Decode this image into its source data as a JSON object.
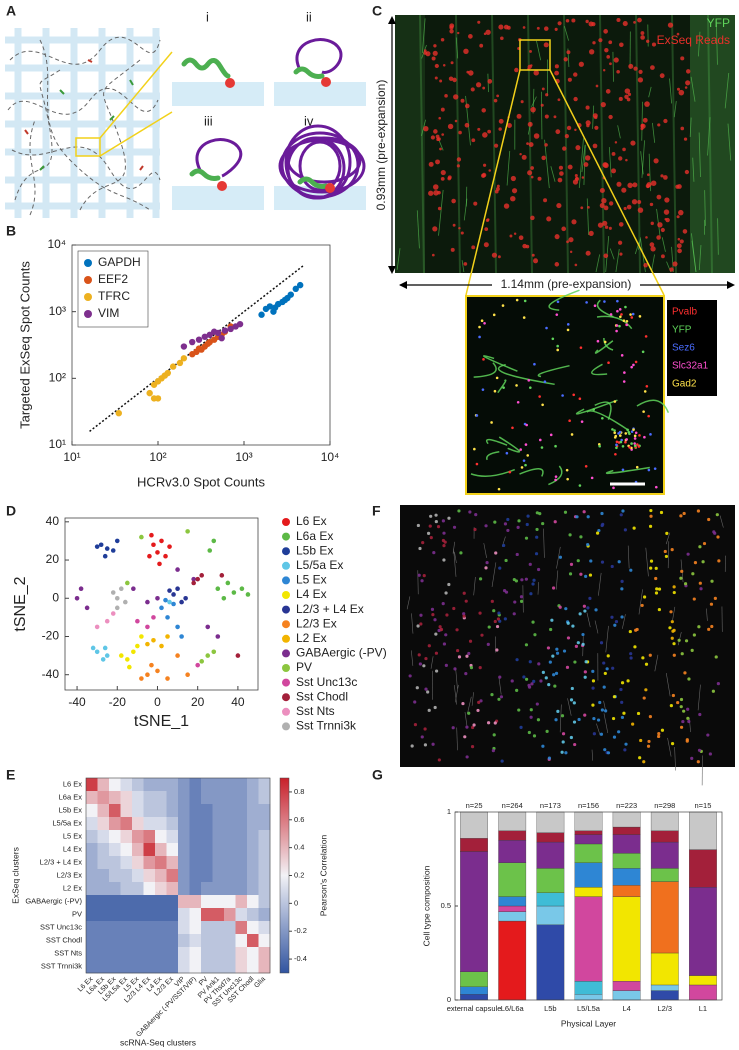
{
  "panel_labels": [
    "A",
    "B",
    "C",
    "D",
    "E",
    "F",
    "G"
  ],
  "panel_a": {
    "subpanels": [
      "i",
      "ii",
      "iii",
      "iv"
    ]
  },
  "panel_c": {
    "channels": [
      {
        "name": "YFP",
        "color": "#5fd35a"
      },
      {
        "name": "ExSeq Reads",
        "color": "#e8302a"
      }
    ],
    "vertical_scale": "0.93mm (pre-expansion)",
    "horizontal_scale": "1.14mm (pre-expansion)",
    "inset_channels": [
      {
        "name": "Pvalb",
        "color": "#ff3030"
      },
      {
        "name": "YFP",
        "color": "#5fd35a"
      },
      {
        "name": "Sez6",
        "color": "#4a6cff"
      },
      {
        "name": "Slc32a1",
        "color": "#ff4fd0"
      },
      {
        "name": "Gad2",
        "color": "#ffe24a"
      }
    ]
  },
  "chart_data": [
    {
      "type": "scatter",
      "xlabel": "HCRv3.0 Spot Counts",
      "ylabel": "Targeted ExSeq Spot Counts",
      "xscale": "log",
      "yscale": "log",
      "diagonal": true,
      "legend": "upper left",
      "xlim": [
        10,
        10000
      ],
      "ylim": [
        10,
        10000
      ],
      "xticks": [
        {
          "value": 10,
          "label": "10¹"
        },
        {
          "value": 100,
          "label": "10²"
        },
        {
          "value": 1000,
          "label": "10³"
        },
        {
          "value": 10000,
          "label": "10⁴"
        }
      ],
      "yticks": [
        {
          "value": 10,
          "label": "10¹"
        },
        {
          "value": 100,
          "label": "10²"
        },
        {
          "value": 1000,
          "label": "10³"
        },
        {
          "value": 10000,
          "label": "10⁴"
        }
      ],
      "series": [
        {
          "name": "GAPDH",
          "color": "#0072bd",
          "x": [
            1600,
            1800,
            2000,
            2200,
            2300,
            2500,
            2800,
            3000,
            3200,
            3500,
            4000,
            4500
          ],
          "values": [
            900,
            1100,
            1200,
            1000,
            1150,
            1300,
            1400,
            1500,
            1600,
            1800,
            2200,
            2500
          ]
        },
        {
          "name": "EEF2",
          "color": "#d95319",
          "x": [
            250,
            280,
            300,
            320,
            350,
            380,
            400,
            450,
            500,
            550,
            600,
            700
          ],
          "values": [
            230,
            250,
            280,
            270,
            300,
            330,
            350,
            380,
            420,
            450,
            500,
            600
          ]
        },
        {
          "name": "TFRC",
          "color": "#edb120",
          "x": [
            35,
            80,
            90,
            90,
            100,
            100,
            110,
            120,
            130,
            150,
            180,
            200
          ],
          "values": [
            30,
            60,
            50,
            80,
            90,
            50,
            100,
            110,
            120,
            150,
            170,
            200
          ]
        },
        {
          "name": "VIM",
          "color": "#7e2f8e",
          "x": [
            200,
            250,
            300,
            350,
            400,
            450,
            500,
            550,
            600,
            700,
            800,
            900
          ],
          "values": [
            300,
            350,
            380,
            420,
            450,
            500,
            480,
            400,
            520,
            550,
            600,
            650
          ]
        }
      ]
    },
    {
      "type": "scatter",
      "xlabel": "tSNE_1",
      "ylabel": "tSNE_2",
      "legend": "right",
      "xlim": [
        -46,
        50
      ],
      "ylim": [
        -48,
        42
      ],
      "xticks": [
        -40,
        -20,
        0,
        20,
        40
      ],
      "yticks": [
        -40,
        -20,
        0,
        20,
        40
      ],
      "series": [
        {
          "name": "L6 Ex",
          "color": "#e41a1c",
          "x": [
            -2,
            2,
            0,
            4,
            -4,
            1,
            6,
            -3
          ],
          "values": [
            28,
            30,
            24,
            22,
            22,
            18,
            27,
            33
          ]
        },
        {
          "name": "L6a Ex",
          "color": "#5cb946",
          "x": [
            30,
            35,
            38,
            42,
            33,
            28,
            26,
            45
          ],
          "values": [
            5,
            8,
            3,
            5,
            0,
            30,
            25,
            2
          ]
        },
        {
          "name": "L5b Ex",
          "color": "#1f3d99",
          "x": [
            -28,
            -25,
            -22,
            -26,
            -30,
            -20
          ],
          "values": [
            28,
            26,
            25,
            22,
            27,
            30
          ]
        },
        {
          "name": "L5/5a Ex",
          "color": "#5fc6e6",
          "x": [
            -30,
            -27,
            -25,
            -32,
            -26,
            6
          ],
          "values": [
            -28,
            -32,
            -30,
            -26,
            -26,
            -2
          ]
        },
        {
          "name": "L5 Ex",
          "color": "#2e86d4",
          "x": [
            2,
            8,
            5,
            10,
            12,
            4
          ],
          "values": [
            -5,
            -3,
            -10,
            -15,
            -20,
            -1
          ]
        },
        {
          "name": "L4 Ex",
          "color": "#f2e600",
          "x": [
            -15,
            -12,
            -18,
            -10,
            -8,
            -14
          ],
          "values": [
            -32,
            -28,
            -30,
            -25,
            -20,
            -36
          ]
        },
        {
          "name": "L2/3 + L4 Ex",
          "color": "#283593",
          "x": [
            8,
            12,
            10,
            14,
            6
          ],
          "values": [
            2,
            -2,
            5,
            0,
            4
          ]
        },
        {
          "name": "L2/3 Ex",
          "color": "#f58220",
          "x": [
            -5,
            0,
            -8,
            -3,
            5,
            10,
            15
          ],
          "values": [
            -40,
            -38,
            -42,
            -35,
            -42,
            -30,
            -40
          ]
        },
        {
          "name": "L2 Ex",
          "color": "#f2b400",
          "x": [
            -2,
            2,
            5,
            -5
          ],
          "values": [
            -22,
            -25,
            -20,
            -24
          ]
        },
        {
          "name": "GABAergic (-PV)",
          "color": "#7b2d8e",
          "x": [
            -40,
            10,
            0,
            30,
            -35,
            -38,
            -5,
            25,
            18,
            -12
          ],
          "values": [
            0,
            15,
            0,
            -20,
            -5,
            5,
            -2,
            -15,
            10,
            5
          ]
        },
        {
          "name": "PV",
          "color": "#8cc63f",
          "x": [
            25,
            22,
            28,
            -15,
            -8,
            15
          ],
          "values": [
            -30,
            -33,
            -28,
            8,
            32,
            35
          ]
        },
        {
          "name": "Sst Unc13c",
          "color": "#d1479e",
          "x": [
            -5,
            -10,
            -2,
            20
          ],
          "values": [
            -15,
            -12,
            -10,
            -35
          ]
        },
        {
          "name": "Sst Chodl",
          "color": "#a3203a",
          "x": [
            20,
            22,
            18,
            40,
            32
          ],
          "values": [
            10,
            12,
            8,
            -30,
            12
          ]
        },
        {
          "name": "Sst Nts",
          "color": "#ec8fbf",
          "x": [
            -25,
            -22,
            -30
          ],
          "values": [
            -12,
            -8,
            -15
          ]
        },
        {
          "name": "Sst Trnni3k",
          "color": "#b0b0b0",
          "x": [
            -20,
            -18,
            -22,
            -16,
            -20
          ],
          "values": [
            0,
            5,
            3,
            -2,
            -5
          ]
        }
      ]
    },
    {
      "type": "heatmap",
      "xlabel": "scRNA-Seq clusters",
      "ylabel": "ExSeq clusters",
      "colorbar_label": "Pearson's Correlation",
      "clim": [
        -0.5,
        0.9
      ],
      "cticks": [
        -0.4,
        -0.2,
        0,
        0.2,
        0.4,
        0.6,
        0.8
      ],
      "rows": [
        "L6 Ex",
        "L6a Ex",
        "L5b Ex",
        "L5/5a Ex",
        "L5 Ex",
        "L4 Ex",
        "L2/3 + L4 Ex",
        "L2/3 Ex",
        "L2 Ex",
        "GABAergic (-PV)",
        "PV",
        "SST Unc13c",
        "SST Chodl",
        "SST Nts",
        "SST Trnni3k"
      ],
      "columns": [
        "L6 Ex",
        "L6a Ex",
        "L5b Ex",
        "L5/L5a Ex",
        "L5 Ex",
        "L2/3 L4 Ex",
        "L4 Ex",
        "L2/3 Ex",
        "VIP",
        "GABAergic (-PV/SST/VIP)",
        "PV",
        "PV Ank1",
        "PV Thsd7a",
        "SST Unc13c",
        "SST Chodl",
        "Glia"
      ],
      "values": [
        [
          0.8,
          0.4,
          0.2,
          0.1,
          0.0,
          -0.1,
          -0.1,
          -0.1,
          -0.2,
          -0.3,
          -0.2,
          -0.2,
          -0.2,
          -0.2,
          -0.1,
          0.0
        ],
        [
          0.4,
          0.5,
          0.4,
          0.3,
          0.1,
          0.0,
          0.0,
          -0.1,
          -0.2,
          -0.3,
          -0.2,
          -0.2,
          -0.2,
          -0.2,
          -0.1,
          0.0
        ],
        [
          0.2,
          0.4,
          0.7,
          0.3,
          0.1,
          0.0,
          0.0,
          -0.1,
          -0.2,
          -0.3,
          -0.3,
          -0.2,
          -0.2,
          -0.2,
          -0.1,
          -0.1
        ],
        [
          0.1,
          0.3,
          0.5,
          0.6,
          0.3,
          0.1,
          0.1,
          0.0,
          -0.2,
          -0.3,
          -0.3,
          -0.2,
          -0.2,
          -0.2,
          -0.1,
          -0.1
        ],
        [
          0.0,
          0.1,
          0.2,
          0.3,
          0.5,
          0.6,
          0.2,
          0.1,
          -0.2,
          -0.3,
          -0.3,
          -0.2,
          -0.2,
          -0.2,
          -0.1,
          0.0
        ],
        [
          -0.1,
          0.0,
          0.1,
          0.2,
          0.4,
          0.8,
          0.4,
          0.2,
          -0.2,
          -0.3,
          -0.3,
          -0.2,
          -0.2,
          -0.2,
          -0.1,
          0.0
        ],
        [
          -0.1,
          0.0,
          0.0,
          0.1,
          0.3,
          0.5,
          0.6,
          0.4,
          -0.2,
          -0.3,
          -0.3,
          -0.2,
          -0.2,
          -0.2,
          -0.1,
          0.0
        ],
        [
          -0.1,
          -0.1,
          0.0,
          0.0,
          0.1,
          0.3,
          0.4,
          0.6,
          -0.2,
          -0.3,
          -0.3,
          -0.2,
          -0.2,
          -0.2,
          -0.1,
          0.0
        ],
        [
          -0.1,
          -0.1,
          -0.1,
          0.0,
          0.0,
          0.2,
          0.3,
          0.4,
          -0.2,
          -0.3,
          -0.2,
          -0.2,
          -0.2,
          -0.2,
          -0.1,
          0.0
        ],
        [
          -0.4,
          -0.4,
          -0.4,
          -0.4,
          -0.4,
          -0.4,
          -0.4,
          -0.4,
          0.4,
          0.4,
          0.2,
          0.2,
          0.2,
          0.4,
          0.2,
          0.0
        ],
        [
          -0.4,
          -0.4,
          -0.4,
          -0.4,
          -0.4,
          -0.4,
          -0.4,
          -0.4,
          0.1,
          0.2,
          0.7,
          0.7,
          0.5,
          0.1,
          0.0,
          -0.1
        ],
        [
          -0.3,
          -0.3,
          -0.3,
          -0.3,
          -0.3,
          -0.3,
          -0.3,
          -0.3,
          0.1,
          0.2,
          0.0,
          0.0,
          0.0,
          0.6,
          0.2,
          0.1
        ],
        [
          -0.3,
          -0.3,
          -0.3,
          -0.3,
          -0.3,
          -0.3,
          -0.3,
          -0.3,
          0.0,
          0.1,
          0.0,
          0.0,
          0.0,
          0.2,
          0.7,
          0.2
        ],
        [
          -0.3,
          -0.3,
          -0.3,
          -0.3,
          -0.3,
          -0.3,
          -0.3,
          -0.3,
          0.1,
          0.2,
          0.0,
          0.0,
          0.0,
          0.3,
          0.2,
          0.4
        ],
        [
          -0.3,
          -0.3,
          -0.3,
          -0.3,
          -0.3,
          -0.3,
          -0.3,
          -0.3,
          0.1,
          0.2,
          0.0,
          0.0,
          0.0,
          0.3,
          0.2,
          0.4
        ]
      ]
    },
    {
      "type": "bar",
      "stacked": true,
      "xlabel": "Physical Layer",
      "ylabel": "Cell type composition",
      "categories": [
        "external capsule",
        "L6/L6a",
        "L5b",
        "L5/L5a",
        "L4",
        "L2/3",
        "L1"
      ],
      "bar_labels": [
        "n=25",
        "n=264",
        "n=173",
        "n=156",
        "n=223",
        "n=298",
        "n=15"
      ],
      "ylim": [
        0,
        1
      ],
      "yticks": [
        0,
        0.5,
        1
      ],
      "series": [
        {
          "color": "#e41a1c",
          "values": [
            0,
            0.42,
            0,
            0,
            0,
            0,
            0
          ]
        },
        {
          "color": "#2f4aa8",
          "values": [
            0.03,
            0,
            0.4,
            0,
            0,
            0.05,
            0
          ]
        },
        {
          "color": "#79c8e8",
          "values": [
            0,
            0.05,
            0.1,
            0.03,
            0.05,
            0.03,
            0
          ]
        },
        {
          "color": "#3fbcd6",
          "values": [
            0,
            0,
            0.07,
            0.07,
            0,
            0,
            0
          ]
        },
        {
          "color": "#d1479e",
          "values": [
            0,
            0.03,
            0,
            0.45,
            0.05,
            0,
            0.08
          ]
        },
        {
          "color": "#f2e600",
          "values": [
            0,
            0,
            0,
            0.05,
            0.45,
            0.17,
            0.05
          ]
        },
        {
          "color": "#f0701e",
          "values": [
            0,
            0,
            0,
            0,
            0.06,
            0.38,
            0
          ]
        },
        {
          "color": "#2e86d4",
          "values": [
            0.04,
            0.05,
            0,
            0.13,
            0.09,
            0,
            0
          ]
        },
        {
          "color": "#6cc24a",
          "values": [
            0.08,
            0.18,
            0.13,
            0.1,
            0.08,
            0.07,
            0
          ]
        },
        {
          "color": "#7b2d8e",
          "values": [
            0.64,
            0.12,
            0.14,
            0.05,
            0.1,
            0.14,
            0.47
          ]
        },
        {
          "color": "#a3203a",
          "values": [
            0.07,
            0.05,
            0.05,
            0.02,
            0.04,
            0.06,
            0.2
          ]
        },
        {
          "color": "#c8c8c8",
          "values": [
            0.14,
            0.1,
            0.11,
            0.1,
            0.08,
            0.1,
            0.2
          ]
        }
      ]
    }
  ]
}
